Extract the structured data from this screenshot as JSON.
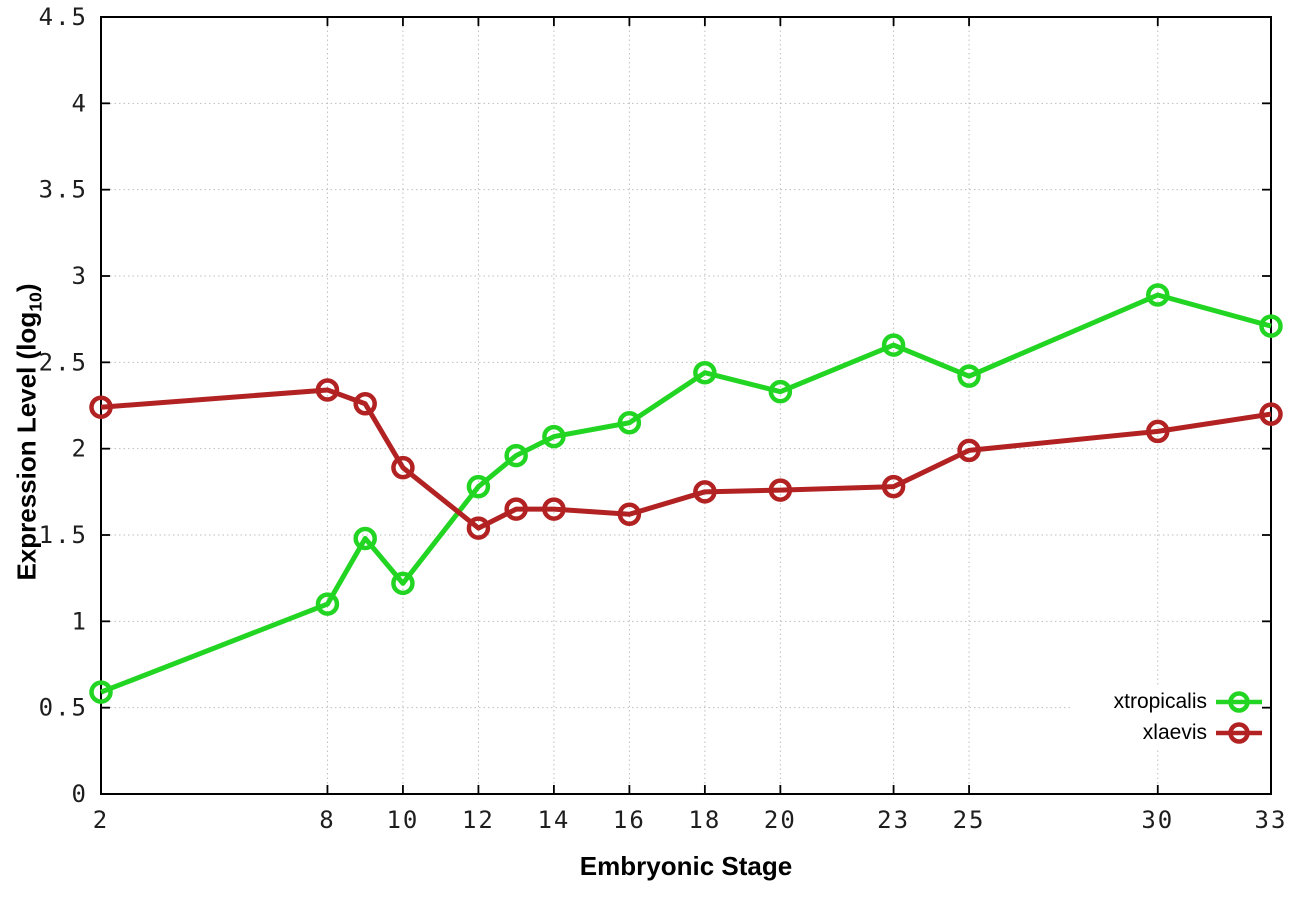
{
  "chart_data": {
    "type": "line",
    "title": "",
    "xlabel": "Embryonic Stage",
    "ylabel": "Expression Level (log10)",
    "ylabel_parts": {
      "prefix": "Expression Level (log",
      "sub": "10",
      "suffix": ")"
    },
    "xlim": [
      2,
      33
    ],
    "ylim": [
      0,
      4.5
    ],
    "grid": true,
    "legend_position": "inside bottom-right",
    "x": [
      2,
      8,
      9,
      10,
      12,
      13,
      14,
      16,
      18,
      20,
      23,
      25,
      30,
      33
    ],
    "xticks": {
      "values": [
        2,
        8,
        10,
        12,
        14,
        16,
        18,
        20,
        23,
        25,
        30,
        33
      ],
      "labels": [
        "2",
        "8",
        "10",
        "12",
        "14",
        "16",
        "18",
        "20",
        "23",
        "25",
        "30",
        "33"
      ]
    },
    "yticks": {
      "values": [
        0,
        0.5,
        1,
        1.5,
        2,
        2.5,
        3,
        3.5,
        4,
        4.5
      ],
      "labels": [
        "0",
        "0.5",
        "1",
        "1.5",
        "2",
        "2.5",
        "3",
        "3.5",
        "4",
        "4.5"
      ]
    },
    "series": [
      {
        "name": "xtropicalis",
        "color": "#23d523",
        "values": [
          0.59,
          1.1,
          1.48,
          1.22,
          1.78,
          1.96,
          2.07,
          2.15,
          2.44,
          2.33,
          2.6,
          2.42,
          2.89,
          2.71
        ]
      },
      {
        "name": "xlaevis",
        "color": "#b22222",
        "values": [
          2.24,
          2.34,
          2.26,
          1.89,
          1.54,
          1.65,
          1.65,
          1.62,
          1.75,
          1.76,
          1.78,
          1.99,
          2.1,
          2.2
        ]
      }
    ]
  }
}
